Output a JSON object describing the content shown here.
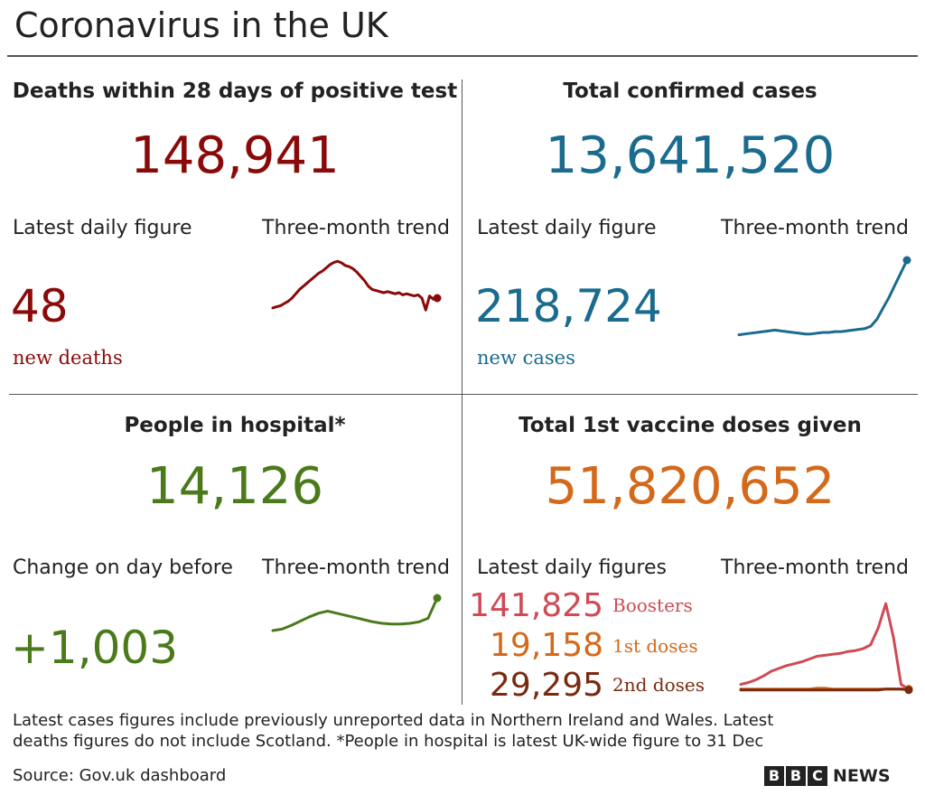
{
  "header": {
    "title": "Coronavirus in the UK"
  },
  "deaths": {
    "title": "Deaths within 28 days of positive test",
    "total": "148,941",
    "daily_label": "Latest daily figure",
    "trend_label": "Three-month trend",
    "daily": "48",
    "unit": "new deaths",
    "color": "#8a0a0a"
  },
  "cases": {
    "title": "Total confirmed cases",
    "total": "13,641,520",
    "daily_label": "Latest daily figure",
    "trend_label": "Three-month trend",
    "daily": "218,724",
    "unit": "new cases",
    "color": "#1a6b8e"
  },
  "hospital": {
    "title": "People in hospital*",
    "total": "14,126",
    "daily_label": "Change on day before",
    "trend_label": "Three-month trend",
    "daily": "+1,003",
    "color": "#4b7a1a"
  },
  "vaccine": {
    "title": "Total 1st vaccine doses given",
    "total": "51,820,652",
    "daily_label": "Latest daily figures",
    "trend_label": "Three-month trend",
    "color": "#d4691b",
    "rows": [
      {
        "value": "141,825",
        "label": "Boosters",
        "color": "#cf4a55"
      },
      {
        "value": "19,158",
        "label": "1st doses",
        "color": "#d4691b"
      },
      {
        "value": "29,295",
        "label": "2nd doses",
        "color": "#7a2a10"
      }
    ]
  },
  "footer": {
    "note_line1": "Latest cases figures include previously unreported data in Northern Ireland and Wales. Latest",
    "note_line2": "deaths figures do not include Scotland. *People in hospital is latest UK-wide figure to 31 Dec",
    "source": "Source: Gov.uk dashboard",
    "logo_b1": "B",
    "logo_b2": "B",
    "logo_c": "C",
    "logo_news": "NEWS"
  },
  "chart_data": [
    {
      "type": "line",
      "series": [
        {
          "values": [
            12,
            14,
            16,
            20,
            24,
            30,
            38,
            46,
            52,
            58,
            64,
            70,
            76,
            80,
            86,
            92,
            96,
            98,
            95,
            90,
            88,
            84,
            78,
            70,
            62,
            52,
            46,
            44,
            42,
            40,
            42,
            40,
            38,
            40,
            36,
            38,
            36,
            34,
            36,
            30,
            8,
            34,
            28,
            30
          ]
        }
      ],
      "ylim": [
        0,
        100
      ]
    },
    {
      "type": "line",
      "series": [
        {
          "values": [
            4,
            5,
            6,
            7,
            8,
            9,
            10,
            9,
            8,
            7,
            6,
            5,
            5,
            6,
            7,
            7,
            8,
            8,
            9,
            10,
            11,
            12,
            15,
            24,
            38,
            52,
            68,
            84,
            100
          ]
        }
      ],
      "ylim": [
        0,
        100
      ]
    },
    {
      "type": "line",
      "series": [
        {
          "values": [
            10,
            14,
            24,
            36,
            48,
            58,
            64,
            58,
            52,
            46,
            40,
            34,
            30,
            28,
            28,
            30,
            34,
            44,
            100
          ]
        }
      ],
      "ylim": [
        0,
        100
      ]
    },
    {
      "type": "line",
      "series": [
        {
          "values": [
            10,
            12,
            15,
            19,
            24,
            27,
            30,
            32,
            34,
            37,
            40,
            41,
            42,
            43,
            45,
            46,
            48,
            52,
            70,
            96,
            60,
            10,
            5
          ]
        },
        {
          "values": [
            5,
            5,
            5,
            5,
            5,
            5,
            5,
            5,
            5,
            5,
            6,
            6,
            5,
            5,
            5,
            5,
            5,
            5,
            5,
            5,
            5,
            5,
            5
          ]
        },
        {
          "values": [
            4,
            4,
            4,
            4,
            4,
            4,
            4,
            4,
            4,
            4,
            4,
            4,
            4,
            4,
            4,
            4,
            4,
            4,
            4,
            5,
            5,
            5,
            4
          ]
        }
      ],
      "colors": [
        "#cf4a55",
        "#d4691b",
        "#7a2a10"
      ],
      "ylim": [
        0,
        100
      ]
    }
  ]
}
